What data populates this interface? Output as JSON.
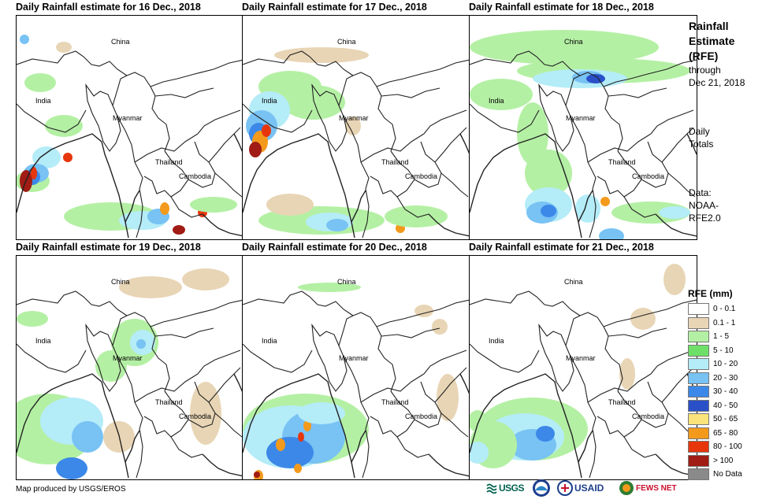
{
  "panels": [
    {
      "title": "Daily Rainfall estimate for 16 Dec., 2018",
      "scene": "d16"
    },
    {
      "title": "Daily Rainfall estimate for 17 Dec., 2018",
      "scene": "d17"
    },
    {
      "title": "Daily Rainfall estimate for 18 Dec., 2018",
      "scene": "d18"
    },
    {
      "title": "Daily Rainfall estimate for 19 Dec., 2018",
      "scene": "d19"
    },
    {
      "title": "Daily Rainfall estimate for 20 Dec., 2018",
      "scene": "d20"
    },
    {
      "title": "Daily Rainfall estimate for 21 Dec., 2018",
      "scene": "d21"
    }
  ],
  "map_labels": {
    "china": "China",
    "india": "India",
    "myanmar": "Myanmar",
    "thailand": "Thailand",
    "cambodia": "Cambodia"
  },
  "side": {
    "title_lines": [
      "Rainfall",
      "Estimate",
      "(RFE)"
    ],
    "through_lines": [
      "through",
      "Dec 21, 2018"
    ],
    "totals_lines": [
      "Daily",
      "Totals"
    ],
    "data_lines": [
      "Data:",
      "NOAA-",
      "RFE2.0"
    ]
  },
  "legend": {
    "title": "RFE (mm)",
    "items": [
      {
        "label": "0 - 0.1",
        "color": "#ffffff"
      },
      {
        "label": "0.1 - 1",
        "color": "#e8d5b5"
      },
      {
        "label": "1 - 5",
        "color": "#b4f0a4"
      },
      {
        "label": "5 - 10",
        "color": "#6ee06a"
      },
      {
        "label": "10 - 20",
        "color": "#b4ecf8"
      },
      {
        "label": "20 - 30",
        "color": "#78c2f4"
      },
      {
        "label": "30 - 40",
        "color": "#3c88e8"
      },
      {
        "label": "40 - 50",
        "color": "#2a50c8"
      },
      {
        "label": "50 - 65",
        "color": "#fae37a"
      },
      {
        "label": "65 - 80",
        "color": "#f39a1c"
      },
      {
        "label": "80 - 100",
        "color": "#e8360c"
      },
      {
        "label": "> 100",
        "color": "#a01c14"
      },
      {
        "label": "No Data",
        "color": "#8a8a8a"
      }
    ]
  },
  "credit": "Map produced by USGS/EROS",
  "logos": [
    "USGS",
    "NOAA",
    "USAID",
    "FEWS NET"
  ]
}
